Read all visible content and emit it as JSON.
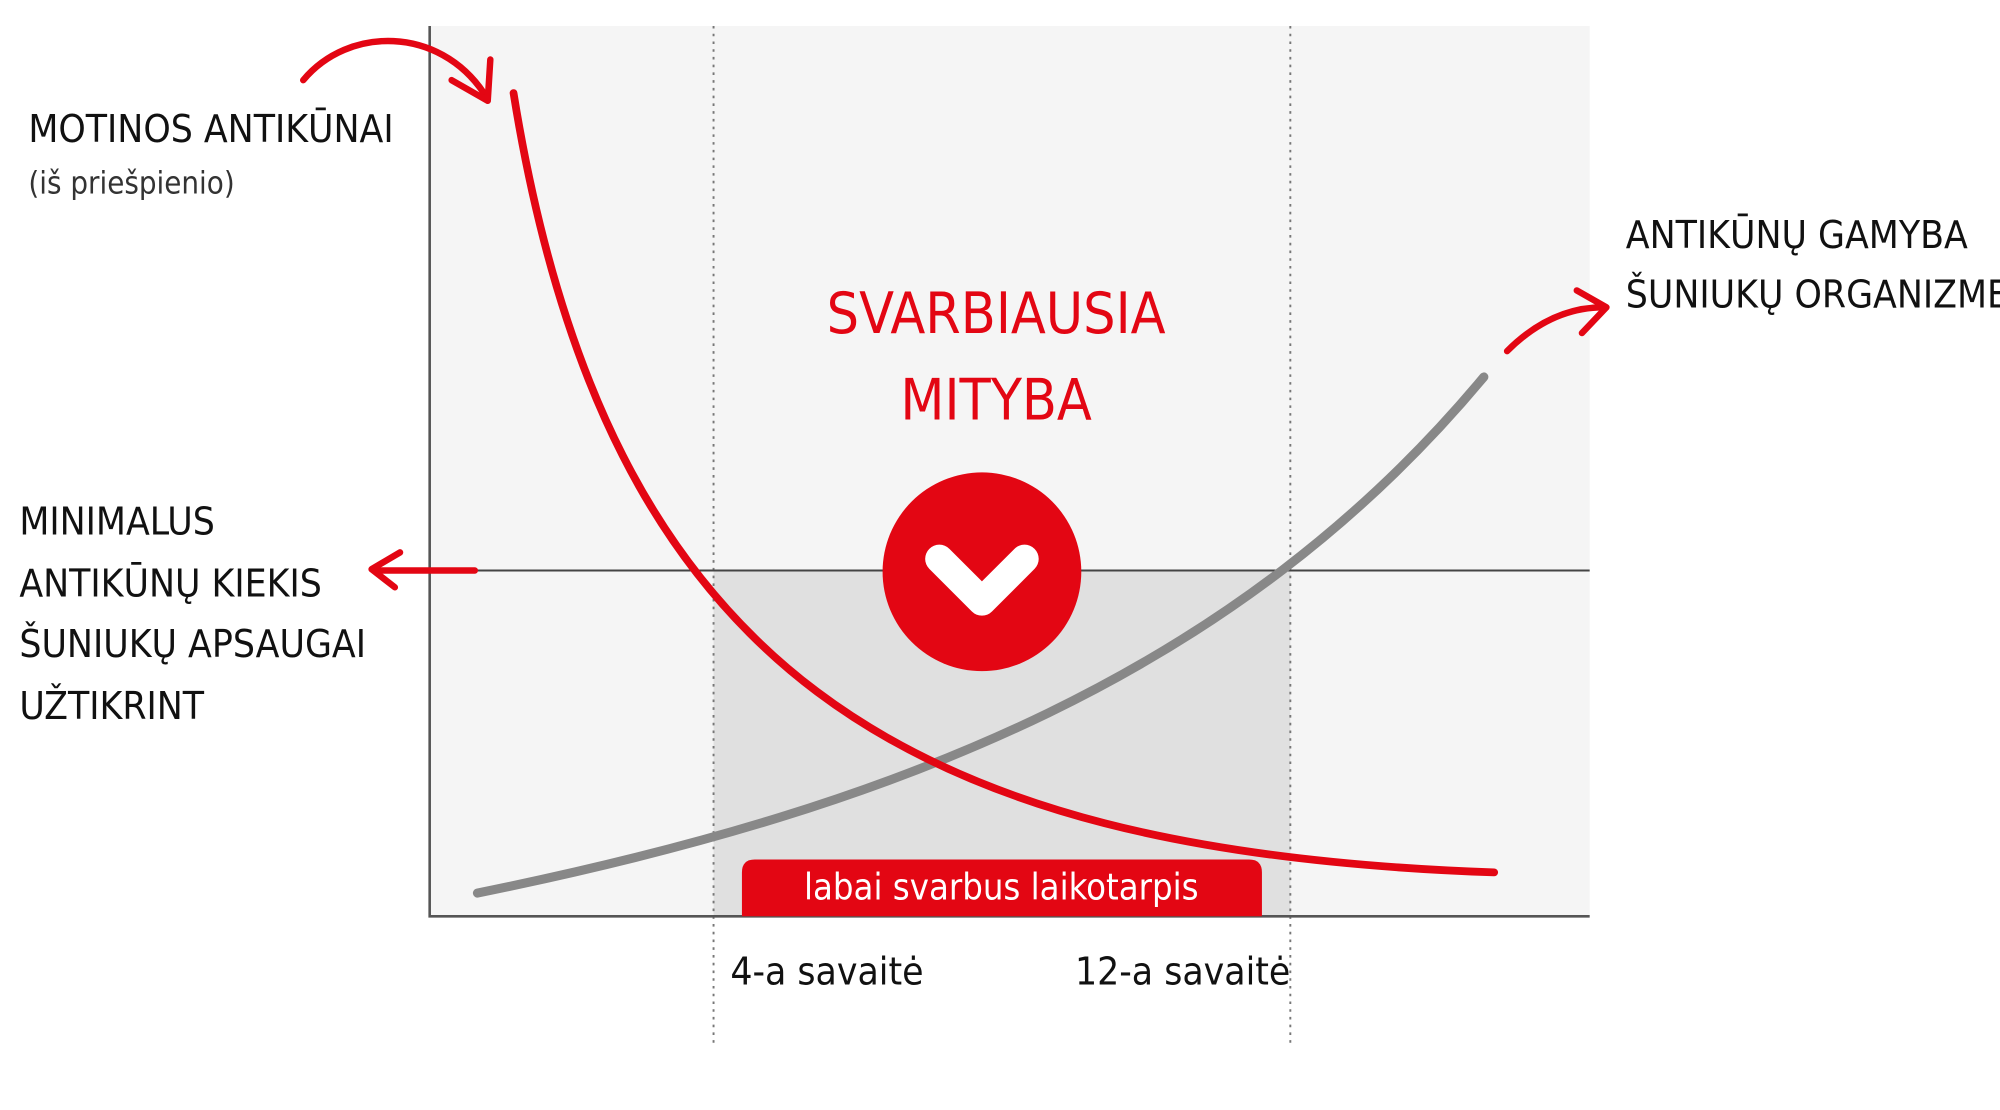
{
  "labels": {
    "maternal": {
      "title": "MOTINOS ANTIKŪNAI",
      "subtitle": "(iš priešpienio)"
    },
    "production": {
      "lines": [
        "ANTIKŪNŲ GAMYBA",
        "ŠUNIUKŲ ORGANIZME"
      ]
    },
    "center": {
      "lines": [
        "SVARBIAUSIA",
        "MITYBA"
      ]
    },
    "minimum": {
      "lines": [
        "MINIMALUS",
        "ANTIKŪNŲ KIEKIS",
        "ŠUNIUKŲ APSAUGAI",
        "UŽTIKRINT"
      ]
    },
    "period": "labai svarbus laikotarpis",
    "weeks": [
      "4-a savaitė",
      "12-a savaitė"
    ]
  }
}
